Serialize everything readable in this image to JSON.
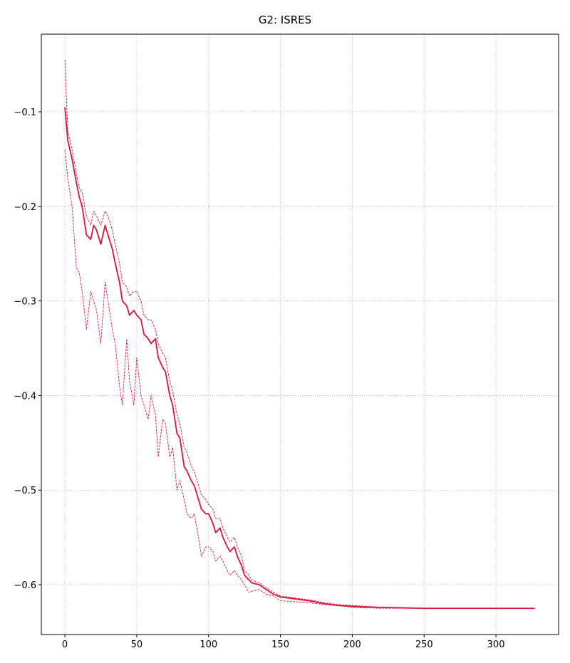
{
  "chart_data": {
    "type": "line",
    "title": "G2: ISRES",
    "x": [
      0,
      2,
      5,
      8,
      10,
      12,
      15,
      18,
      20,
      22,
      25,
      28,
      30,
      33,
      35,
      38,
      40,
      43,
      45,
      48,
      50,
      53,
      55,
      58,
      60,
      63,
      65,
      68,
      70,
      73,
      75,
      78,
      80,
      83,
      85,
      88,
      90,
      93,
      95,
      98,
      100,
      103,
      105,
      108,
      110,
      113,
      115,
      118,
      120,
      123,
      125,
      128,
      130,
      135,
      140,
      145,
      150,
      160,
      170,
      180,
      190,
      200,
      220,
      250,
      300,
      327
    ],
    "series": [
      {
        "color": "#dc143c",
        "style": "solid",
        "values": [
          -0.095,
          -0.13,
          -0.15,
          -0.175,
          -0.19,
          -0.2,
          -0.23,
          -0.235,
          -0.22,
          -0.225,
          -0.24,
          -0.22,
          -0.23,
          -0.245,
          -0.26,
          -0.28,
          -0.3,
          -0.305,
          -0.315,
          -0.31,
          -0.315,
          -0.32,
          -0.335,
          -0.34,
          -0.345,
          -0.34,
          -0.36,
          -0.37,
          -0.375,
          -0.4,
          -0.41,
          -0.44,
          -0.445,
          -0.475,
          -0.48,
          -0.49,
          -0.495,
          -0.51,
          -0.52,
          -0.525,
          -0.525,
          -0.535,
          -0.545,
          -0.54,
          -0.55,
          -0.56,
          -0.565,
          -0.56,
          -0.57,
          -0.58,
          -0.59,
          -0.595,
          -0.598,
          -0.6,
          -0.605,
          -0.61,
          -0.613,
          -0.615,
          -0.617,
          -0.62,
          -0.622,
          -0.623,
          -0.624,
          -0.625,
          -0.625,
          -0.625
        ]
      },
      {
        "color": "#dc143c",
        "style": "dashed",
        "values": [
          -0.045,
          -0.12,
          -0.14,
          -0.165,
          -0.18,
          -0.185,
          -0.21,
          -0.22,
          -0.205,
          -0.21,
          -0.22,
          -0.205,
          -0.21,
          -0.225,
          -0.24,
          -0.26,
          -0.28,
          -0.285,
          -0.295,
          -0.29,
          -0.29,
          -0.3,
          -0.315,
          -0.32,
          -0.32,
          -0.33,
          -0.345,
          -0.355,
          -0.36,
          -0.385,
          -0.395,
          -0.42,
          -0.43,
          -0.455,
          -0.46,
          -0.475,
          -0.48,
          -0.495,
          -0.505,
          -0.51,
          -0.515,
          -0.52,
          -0.53,
          -0.53,
          -0.54,
          -0.55,
          -0.555,
          -0.55,
          -0.56,
          -0.57,
          -0.585,
          -0.59,
          -0.595,
          -0.598,
          -0.603,
          -0.608,
          -0.612,
          -0.614,
          -0.616,
          -0.619,
          -0.621,
          -0.622,
          -0.624,
          -0.625,
          -0.625,
          -0.625
        ]
      },
      {
        "color": "#dc143c",
        "style": "dashed",
        "values": [
          -0.14,
          -0.17,
          -0.2,
          -0.265,
          -0.27,
          -0.29,
          -0.33,
          -0.29,
          -0.3,
          -0.31,
          -0.345,
          -0.28,
          -0.3,
          -0.33,
          -0.345,
          -0.39,
          -0.41,
          -0.34,
          -0.385,
          -0.41,
          -0.36,
          -0.4,
          -0.41,
          -0.425,
          -0.4,
          -0.42,
          -0.465,
          -0.425,
          -0.43,
          -0.465,
          -0.455,
          -0.5,
          -0.49,
          -0.51,
          -0.525,
          -0.53,
          -0.525,
          -0.55,
          -0.57,
          -0.56,
          -0.56,
          -0.565,
          -0.575,
          -0.57,
          -0.575,
          -0.585,
          -0.59,
          -0.585,
          -0.59,
          -0.595,
          -0.6,
          -0.608,
          -0.607,
          -0.605,
          -0.61,
          -0.612,
          -0.617,
          -0.618,
          -0.619,
          -0.621,
          -0.622,
          -0.624,
          -0.625,
          -0.625,
          -0.625,
          -0.625
        ]
      }
    ],
    "xlim": [
      -16.4,
      343.6
    ],
    "ylim": [
      -0.6527,
      -0.0179
    ],
    "xticks": [
      0,
      50,
      100,
      150,
      200,
      250,
      300
    ],
    "yticks": [
      {
        "value": -0.1,
        "label": "−0.1"
      },
      {
        "value": -0.2,
        "label": "−0.2"
      },
      {
        "value": -0.3,
        "label": "−0.3"
      },
      {
        "value": -0.4,
        "label": "−0.4"
      },
      {
        "value": -0.5,
        "label": "−0.5"
      },
      {
        "value": -0.6,
        "label": "−0.6"
      }
    ],
    "grid": true
  }
}
